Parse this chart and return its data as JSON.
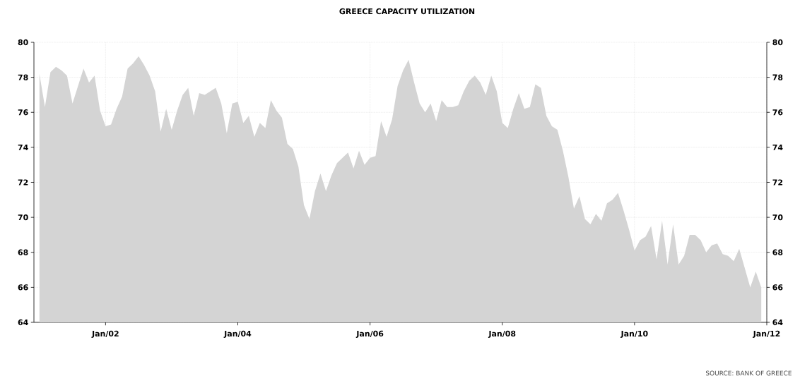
{
  "chart_data": {
    "type": "area",
    "title": "GREECE CAPACITY UTILIZATION",
    "x": [
      "2001-01",
      "2001-02",
      "2001-03",
      "2001-04",
      "2001-05",
      "2001-06",
      "2001-07",
      "2001-08",
      "2001-09",
      "2001-10",
      "2001-11",
      "2001-12",
      "2002-01",
      "2002-02",
      "2002-03",
      "2002-04",
      "2002-05",
      "2002-06",
      "2002-07",
      "2002-08",
      "2002-09",
      "2002-10",
      "2002-11",
      "2002-12",
      "2003-01",
      "2003-02",
      "2003-03",
      "2003-04",
      "2003-05",
      "2003-06",
      "2003-07",
      "2003-08",
      "2003-09",
      "2003-10",
      "2003-11",
      "2003-12",
      "2004-01",
      "2004-02",
      "2004-03",
      "2004-04",
      "2004-05",
      "2004-06",
      "2004-07",
      "2004-08",
      "2004-09",
      "2004-10",
      "2004-11",
      "2004-12",
      "2005-01",
      "2005-02",
      "2005-03",
      "2005-04",
      "2005-05",
      "2005-06",
      "2005-07",
      "2005-08",
      "2005-09",
      "2005-10",
      "2005-11",
      "2005-12",
      "2006-01",
      "2006-02",
      "2006-03",
      "2006-04",
      "2006-05",
      "2006-06",
      "2006-07",
      "2006-08",
      "2006-09",
      "2006-10",
      "2006-11",
      "2006-12",
      "2007-01",
      "2007-02",
      "2007-03",
      "2007-04",
      "2007-05",
      "2007-06",
      "2007-07",
      "2007-08",
      "2007-09",
      "2007-10",
      "2007-11",
      "2007-12",
      "2008-01",
      "2008-02",
      "2008-03",
      "2008-04",
      "2008-05",
      "2008-06",
      "2008-07",
      "2008-08",
      "2008-09",
      "2008-10",
      "2008-11",
      "2008-12",
      "2009-01",
      "2009-02",
      "2009-03",
      "2009-04",
      "2009-05",
      "2009-06",
      "2009-07",
      "2009-08",
      "2009-09",
      "2009-10",
      "2009-11",
      "2009-12",
      "2010-01",
      "2010-02",
      "2010-03",
      "2010-04",
      "2010-05",
      "2010-06",
      "2010-07",
      "2010-08",
      "2010-09",
      "2010-10",
      "2010-11",
      "2010-12",
      "2011-01",
      "2011-02",
      "2011-03",
      "2011-04",
      "2011-05",
      "2011-06",
      "2011-07",
      "2011-08",
      "2011-09",
      "2011-10",
      "2011-11",
      "2011-12"
    ],
    "series": [
      {
        "color": "#d4d4d4",
        "values": [
          78.2,
          76.3,
          78.3,
          78.6,
          78.4,
          78.1,
          76.5,
          77.5,
          78.5,
          77.7,
          78.1,
          76.1,
          75.2,
          75.3,
          76.2,
          76.9,
          78.5,
          78.8,
          79.2,
          78.7,
          78.1,
          77.2,
          74.9,
          76.2,
          75.0,
          76.1,
          77.0,
          77.4,
          75.8,
          77.1,
          77.0,
          77.2,
          77.4,
          76.5,
          74.8,
          76.5,
          76.6,
          75.4,
          75.8,
          74.6,
          75.4,
          75.1,
          76.7,
          76.1,
          75.7,
          74.2,
          73.9,
          72.9,
          70.7,
          69.9,
          71.5,
          72.5,
          71.5,
          72.4,
          73.1,
          73.4,
          73.7,
          72.8,
          73.8,
          73.0,
          73.4,
          73.5,
          75.5,
          74.6,
          75.6,
          77.5,
          78.4,
          79.0,
          77.7,
          76.5,
          76.0,
          76.5,
          75.5,
          76.7,
          76.3,
          76.3,
          76.4,
          77.2,
          77.8,
          78.1,
          77.7,
          77.0,
          78.1,
          77.2,
          75.4,
          75.1,
          76.2,
          77.1,
          76.2,
          76.3,
          77.6,
          77.4,
          75.8,
          75.2,
          75.0,
          73.8,
          72.3,
          70.5,
          71.2,
          69.9,
          69.6,
          70.2,
          69.8,
          70.8,
          71.0,
          71.4,
          70.4,
          69.3,
          68.1,
          68.7,
          68.9,
          69.5,
          67.6,
          69.8,
          67.3,
          69.6,
          67.3,
          67.8,
          69.0,
          69.0,
          68.7,
          68.0,
          68.4,
          68.5,
          67.9,
          67.8,
          67.5,
          68.2,
          67.1,
          66.0,
          66.9,
          66.0
        ]
      }
    ],
    "xlim": [
      "2000-12",
      "2012-01"
    ],
    "xticks": [
      {
        "value": "2002-01",
        "label": "Jan/02"
      },
      {
        "value": "2004-01",
        "label": "Jan/04"
      },
      {
        "value": "2006-01",
        "label": "Jan/06"
      },
      {
        "value": "2008-01",
        "label": "Jan/08"
      },
      {
        "value": "2010-01",
        "label": "Jan/10"
      },
      {
        "value": "2012-01",
        "label": "Jan/12"
      }
    ],
    "ylim": [
      64,
      80
    ],
    "yticks": [
      64,
      66,
      68,
      70,
      72,
      74,
      76,
      78,
      80
    ],
    "y2lim": [
      64,
      80
    ],
    "y2ticks": [
      64,
      66,
      68,
      70,
      72,
      74,
      76,
      78,
      80
    ],
    "grid": true,
    "annotations": [
      "SOURCE: BANK OF GREECE"
    ]
  }
}
